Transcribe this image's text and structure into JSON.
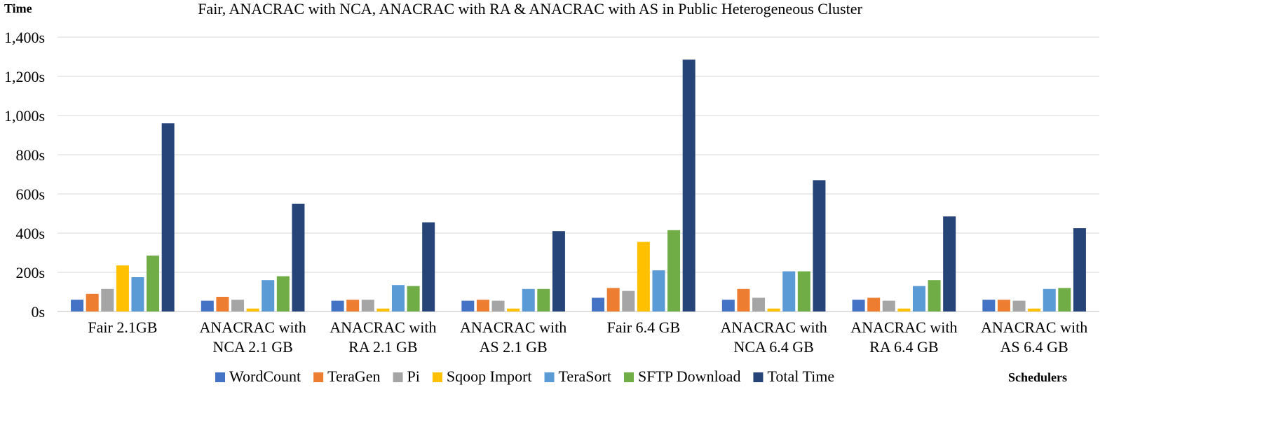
{
  "chart_data": {
    "type": "bar",
    "title": "Fair, ANACRAC with NCA, ANACRAC with RA & ANACRAC with AS in Public Heterogeneous Cluster",
    "ylabel": "Time",
    "xlabel": "Schedulers",
    "ylim": [
      0,
      1400
    ],
    "yticks": [
      0,
      200,
      400,
      600,
      800,
      1000,
      1200,
      1400
    ],
    "ytick_labels": [
      "0s",
      "200s",
      "400s",
      "600s",
      "800s",
      "1,000s",
      "1,200s",
      "1,400s"
    ],
    "grid": true,
    "legend_position": "bottom",
    "categories": [
      [
        "Fair 2.1GB"
      ],
      [
        "ANACRAC with",
        "NCA 2.1 GB"
      ],
      [
        "ANACRAC with",
        "RA 2.1 GB"
      ],
      [
        "ANACRAC with",
        "AS 2.1 GB"
      ],
      [
        "Fair 6.4 GB"
      ],
      [
        "ANACRAC with",
        "NCA 6.4 GB"
      ],
      [
        "ANACRAC with",
        "RA 6.4 GB"
      ],
      [
        "ANACRAC with",
        "AS 6.4 GB"
      ]
    ],
    "series": [
      {
        "name": "WordCount",
        "color": "#4472C4",
        "values": [
          60,
          55,
          55,
          55,
          70,
          60,
          60,
          60
        ]
      },
      {
        "name": "TeraGen",
        "color": "#ED7D31",
        "values": [
          90,
          75,
          60,
          60,
          120,
          115,
          70,
          60
        ]
      },
      {
        "name": "Pi",
        "color": "#A5A5A5",
        "values": [
          115,
          60,
          60,
          55,
          105,
          70,
          55,
          55
        ]
      },
      {
        "name": "Sqoop Import",
        "color": "#FFC000",
        "values": [
          235,
          15,
          15,
          15,
          355,
          15,
          15,
          15
        ]
      },
      {
        "name": "TeraSort",
        "color": "#5B9BD5",
        "values": [
          175,
          160,
          135,
          115,
          210,
          205,
          130,
          115
        ]
      },
      {
        "name": "SFTP Download",
        "color": "#70AD47",
        "values": [
          285,
          180,
          130,
          115,
          415,
          205,
          160,
          120
        ]
      },
      {
        "name": "Total Time",
        "color": "#264478",
        "values": [
          960,
          550,
          455,
          410,
          1285,
          670,
          485,
          425
        ]
      }
    ]
  }
}
